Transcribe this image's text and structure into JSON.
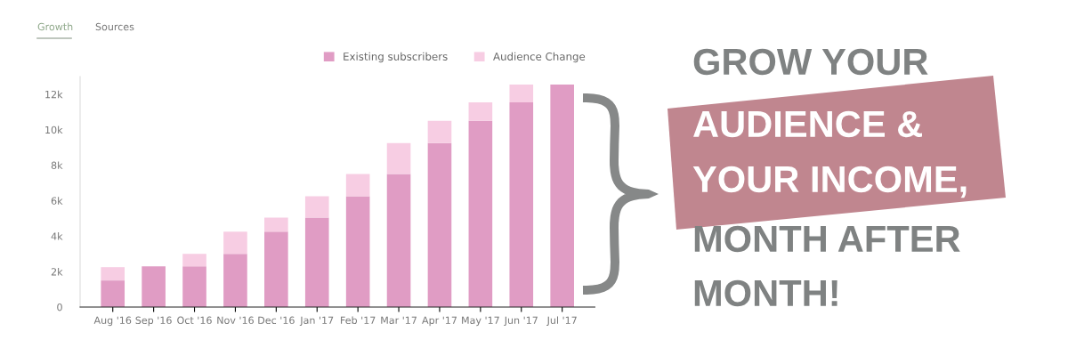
{
  "chart_data": {
    "type": "bar",
    "stacked": true,
    "categories": [
      "Aug '16",
      "Sep '16",
      "Oct '16",
      "Nov '16",
      "Dec '16",
      "Jan '17",
      "Feb '17",
      "Mar '17",
      "Apr '17",
      "May '17",
      "Jun '17",
      "Jul '17"
    ],
    "series": [
      {
        "name": "Existing subscribers",
        "color": "#e09cc4",
        "values": [
          1500,
          2300,
          2300,
          3000,
          4250,
          5050,
          6250,
          7500,
          9250,
          10500,
          11550,
          12550
        ]
      },
      {
        "name": "Audience Change",
        "color": "#f7cde3",
        "values": [
          750,
          0,
          700,
          1250,
          800,
          1200,
          1250,
          1750,
          1250,
          1050,
          1000,
          0
        ]
      }
    ],
    "ylim": [
      0,
      13000
    ],
    "yticks": [
      {
        "value": 0,
        "label": "0"
      },
      {
        "value": 2000,
        "label": "2k"
      },
      {
        "value": 4000,
        "label": "4k"
      },
      {
        "value": 6000,
        "label": "6k"
      },
      {
        "value": 8000,
        "label": "8k"
      },
      {
        "value": 10000,
        "label": "10k"
      },
      {
        "value": 12000,
        "label": "12k"
      }
    ],
    "grid": false,
    "legend": "top right",
    "annotations": [
      "Growth",
      "Sources",
      "GROW YOUR",
      "AUDIENCE &",
      "YOUR INCOME,",
      "MONTH AFTER",
      "MONTH!"
    ]
  }
}
